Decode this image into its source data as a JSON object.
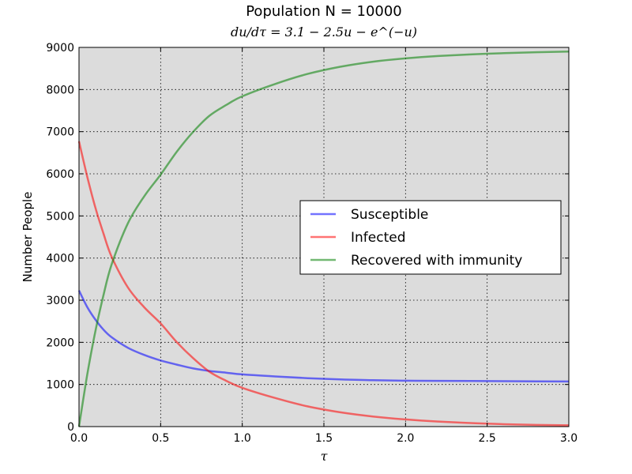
{
  "chart_data": {
    "type": "line",
    "title": "Population N = 10000",
    "subtitle": "du/dτ = 3.1 − 2.5u − e^(−u)",
    "xlabel": "τ",
    "ylabel": "Number People",
    "xlim": [
      0,
      3.0
    ],
    "ylim": [
      0,
      9000
    ],
    "xticks": [
      "0.0",
      "0.5",
      "1.0",
      "1.5",
      "2.0",
      "2.5",
      "3.0"
    ],
    "yticks": [
      "0",
      "1000",
      "2000",
      "3000",
      "4000",
      "5000",
      "6000",
      "7000",
      "8000",
      "9000"
    ],
    "grid": true,
    "legend_position": "center-right",
    "x": [
      0,
      0.05,
      0.1,
      0.15,
      0.2,
      0.3,
      0.4,
      0.5,
      0.6,
      0.7,
      0.8,
      0.9,
      1.0,
      1.2,
      1.4,
      1.6,
      1.8,
      2.0,
      2.2,
      2.5,
      2.8,
      3.0
    ],
    "series": [
      {
        "name": "Susceptible",
        "color": "#0000ff",
        "values": [
          3230,
          2840,
          2540,
          2300,
          2120,
          1870,
          1700,
          1570,
          1470,
          1380,
          1320,
          1280,
          1240,
          1190,
          1150,
          1120,
          1100,
          1090,
          1085,
          1080,
          1075,
          1070
        ]
      },
      {
        "name": "Infected",
        "color": "#ff0000",
        "values": [
          6770,
          5940,
          5200,
          4580,
          4030,
          3300,
          2830,
          2450,
          2000,
          1620,
          1300,
          1090,
          920,
          680,
          480,
          340,
          240,
          170,
          120,
          70,
          40,
          30
        ]
      },
      {
        "name": "Recovered with immunity",
        "color": "#008000",
        "values": [
          0,
          1220,
          2260,
          3120,
          3850,
          4830,
          5470,
          5980,
          6530,
          7000,
          7380,
          7630,
          7840,
          8130,
          8370,
          8540,
          8660,
          8740,
          8795,
          8850,
          8885,
          8900
        ]
      }
    ]
  }
}
